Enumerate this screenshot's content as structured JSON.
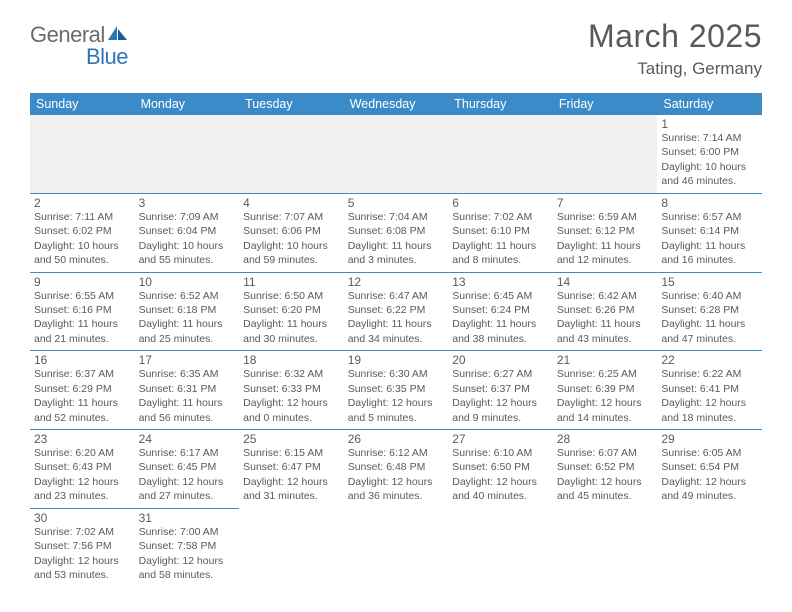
{
  "logo": {
    "text1": "General",
    "text2": "Blue"
  },
  "title": "March 2025",
  "location": "Tating, Germany",
  "colors": {
    "header_bg": "#3b8bc8",
    "header_text": "#ffffff",
    "border": "#3b8bc8",
    "text": "#5a5a5a",
    "empty_row_bg": "#f1f1f1",
    "logo_blue": "#2e75b6",
    "logo_gray": "#6b6b6b"
  },
  "typography": {
    "title_fontsize": 32,
    "location_fontsize": 17,
    "day_header_fontsize": 12.5,
    "daynum_fontsize": 12,
    "dayinfo_fontsize": 10.5
  },
  "days_of_week": [
    "Sunday",
    "Monday",
    "Tuesday",
    "Wednesday",
    "Thursday",
    "Friday",
    "Saturday"
  ],
  "weeks": [
    [
      null,
      null,
      null,
      null,
      null,
      null,
      {
        "n": "1",
        "sr": "Sunrise: 7:14 AM",
        "ss": "Sunset: 6:00 PM",
        "dl1": "Daylight: 10 hours",
        "dl2": "and 46 minutes."
      }
    ],
    [
      {
        "n": "2",
        "sr": "Sunrise: 7:11 AM",
        "ss": "Sunset: 6:02 PM",
        "dl1": "Daylight: 10 hours",
        "dl2": "and 50 minutes."
      },
      {
        "n": "3",
        "sr": "Sunrise: 7:09 AM",
        "ss": "Sunset: 6:04 PM",
        "dl1": "Daylight: 10 hours",
        "dl2": "and 55 minutes."
      },
      {
        "n": "4",
        "sr": "Sunrise: 7:07 AM",
        "ss": "Sunset: 6:06 PM",
        "dl1": "Daylight: 10 hours",
        "dl2": "and 59 minutes."
      },
      {
        "n": "5",
        "sr": "Sunrise: 7:04 AM",
        "ss": "Sunset: 6:08 PM",
        "dl1": "Daylight: 11 hours",
        "dl2": "and 3 minutes."
      },
      {
        "n": "6",
        "sr": "Sunrise: 7:02 AM",
        "ss": "Sunset: 6:10 PM",
        "dl1": "Daylight: 11 hours",
        "dl2": "and 8 minutes."
      },
      {
        "n": "7",
        "sr": "Sunrise: 6:59 AM",
        "ss": "Sunset: 6:12 PM",
        "dl1": "Daylight: 11 hours",
        "dl2": "and 12 minutes."
      },
      {
        "n": "8",
        "sr": "Sunrise: 6:57 AM",
        "ss": "Sunset: 6:14 PM",
        "dl1": "Daylight: 11 hours",
        "dl2": "and 16 minutes."
      }
    ],
    [
      {
        "n": "9",
        "sr": "Sunrise: 6:55 AM",
        "ss": "Sunset: 6:16 PM",
        "dl1": "Daylight: 11 hours",
        "dl2": "and 21 minutes."
      },
      {
        "n": "10",
        "sr": "Sunrise: 6:52 AM",
        "ss": "Sunset: 6:18 PM",
        "dl1": "Daylight: 11 hours",
        "dl2": "and 25 minutes."
      },
      {
        "n": "11",
        "sr": "Sunrise: 6:50 AM",
        "ss": "Sunset: 6:20 PM",
        "dl1": "Daylight: 11 hours",
        "dl2": "and 30 minutes."
      },
      {
        "n": "12",
        "sr": "Sunrise: 6:47 AM",
        "ss": "Sunset: 6:22 PM",
        "dl1": "Daylight: 11 hours",
        "dl2": "and 34 minutes."
      },
      {
        "n": "13",
        "sr": "Sunrise: 6:45 AM",
        "ss": "Sunset: 6:24 PM",
        "dl1": "Daylight: 11 hours",
        "dl2": "and 38 minutes."
      },
      {
        "n": "14",
        "sr": "Sunrise: 6:42 AM",
        "ss": "Sunset: 6:26 PM",
        "dl1": "Daylight: 11 hours",
        "dl2": "and 43 minutes."
      },
      {
        "n": "15",
        "sr": "Sunrise: 6:40 AM",
        "ss": "Sunset: 6:28 PM",
        "dl1": "Daylight: 11 hours",
        "dl2": "and 47 minutes."
      }
    ],
    [
      {
        "n": "16",
        "sr": "Sunrise: 6:37 AM",
        "ss": "Sunset: 6:29 PM",
        "dl1": "Daylight: 11 hours",
        "dl2": "and 52 minutes."
      },
      {
        "n": "17",
        "sr": "Sunrise: 6:35 AM",
        "ss": "Sunset: 6:31 PM",
        "dl1": "Daylight: 11 hours",
        "dl2": "and 56 minutes."
      },
      {
        "n": "18",
        "sr": "Sunrise: 6:32 AM",
        "ss": "Sunset: 6:33 PM",
        "dl1": "Daylight: 12 hours",
        "dl2": "and 0 minutes."
      },
      {
        "n": "19",
        "sr": "Sunrise: 6:30 AM",
        "ss": "Sunset: 6:35 PM",
        "dl1": "Daylight: 12 hours",
        "dl2": "and 5 minutes."
      },
      {
        "n": "20",
        "sr": "Sunrise: 6:27 AM",
        "ss": "Sunset: 6:37 PM",
        "dl1": "Daylight: 12 hours",
        "dl2": "and 9 minutes."
      },
      {
        "n": "21",
        "sr": "Sunrise: 6:25 AM",
        "ss": "Sunset: 6:39 PM",
        "dl1": "Daylight: 12 hours",
        "dl2": "and 14 minutes."
      },
      {
        "n": "22",
        "sr": "Sunrise: 6:22 AM",
        "ss": "Sunset: 6:41 PM",
        "dl1": "Daylight: 12 hours",
        "dl2": "and 18 minutes."
      }
    ],
    [
      {
        "n": "23",
        "sr": "Sunrise: 6:20 AM",
        "ss": "Sunset: 6:43 PM",
        "dl1": "Daylight: 12 hours",
        "dl2": "and 23 minutes."
      },
      {
        "n": "24",
        "sr": "Sunrise: 6:17 AM",
        "ss": "Sunset: 6:45 PM",
        "dl1": "Daylight: 12 hours",
        "dl2": "and 27 minutes."
      },
      {
        "n": "25",
        "sr": "Sunrise: 6:15 AM",
        "ss": "Sunset: 6:47 PM",
        "dl1": "Daylight: 12 hours",
        "dl2": "and 31 minutes."
      },
      {
        "n": "26",
        "sr": "Sunrise: 6:12 AM",
        "ss": "Sunset: 6:48 PM",
        "dl1": "Daylight: 12 hours",
        "dl2": "and 36 minutes."
      },
      {
        "n": "27",
        "sr": "Sunrise: 6:10 AM",
        "ss": "Sunset: 6:50 PM",
        "dl1": "Daylight: 12 hours",
        "dl2": "and 40 minutes."
      },
      {
        "n": "28",
        "sr": "Sunrise: 6:07 AM",
        "ss": "Sunset: 6:52 PM",
        "dl1": "Daylight: 12 hours",
        "dl2": "and 45 minutes."
      },
      {
        "n": "29",
        "sr": "Sunrise: 6:05 AM",
        "ss": "Sunset: 6:54 PM",
        "dl1": "Daylight: 12 hours",
        "dl2": "and 49 minutes."
      }
    ],
    [
      {
        "n": "30",
        "sr": "Sunrise: 7:02 AM",
        "ss": "Sunset: 7:56 PM",
        "dl1": "Daylight: 12 hours",
        "dl2": "and 53 minutes."
      },
      {
        "n": "31",
        "sr": "Sunrise: 7:00 AM",
        "ss": "Sunset: 7:58 PM",
        "dl1": "Daylight: 12 hours",
        "dl2": "and 58 minutes."
      },
      null,
      null,
      null,
      null,
      null
    ]
  ]
}
